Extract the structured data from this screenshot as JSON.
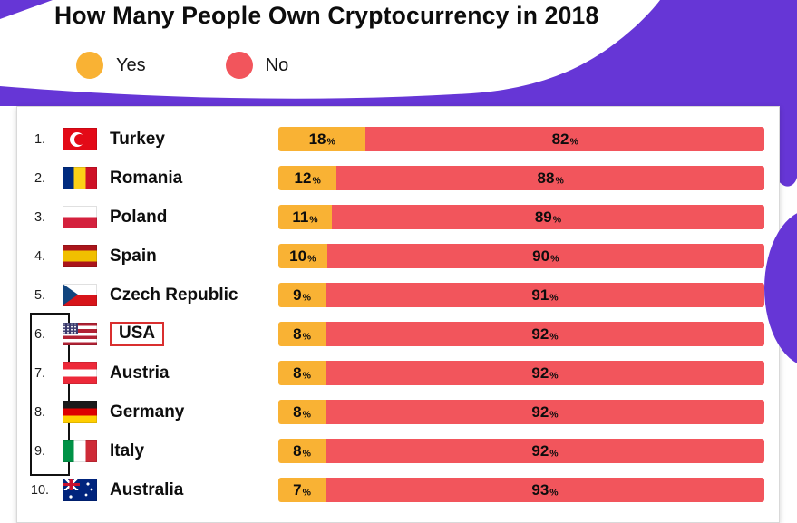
{
  "title": "How Many People Own Cryptocurrency in 2018",
  "legend": {
    "yes_label": "Yes",
    "no_label": "No"
  },
  "units": {
    "percent": "%"
  },
  "colors": {
    "yes": "#F9B234",
    "no": "#F2555C",
    "purple": "#6636D6"
  },
  "chart_data": {
    "type": "bar",
    "stacked": true,
    "orientation": "horizontal",
    "title": "How Many People Own Cryptocurrency in 2018",
    "categories": [
      "Turkey",
      "Romania",
      "Poland",
      "Spain",
      "Czech Republic",
      "USA",
      "Austria",
      "Germany",
      "Italy",
      "Australia"
    ],
    "series": [
      {
        "name": "Yes",
        "color": "#F9B234",
        "values": [
          18,
          12,
          11,
          10,
          9,
          8,
          8,
          8,
          8,
          7
        ]
      },
      {
        "name": "No",
        "color": "#F2555C",
        "values": [
          82,
          88,
          89,
          90,
          91,
          92,
          92,
          92,
          92,
          93
        ]
      }
    ],
    "value_unit": "%",
    "xlim": [
      0,
      100
    ],
    "legend_position": "top-left",
    "annotations": [
      "USA label outlined in red",
      "ranks 6-9 outlined with black bracket"
    ]
  },
  "rows": [
    {
      "rank": "1.",
      "country": "Turkey",
      "flag": "tr",
      "flag_name": "turkey-flag-icon",
      "yes": "18",
      "no": "82",
      "yes_pct": 18,
      "highlight": false
    },
    {
      "rank": "2.",
      "country": "Romania",
      "flag": "ro",
      "flag_name": "romania-flag-icon",
      "yes": "12",
      "no": "88",
      "yes_pct": 12,
      "highlight": false
    },
    {
      "rank": "3.",
      "country": "Poland",
      "flag": "pl",
      "flag_name": "poland-flag-icon",
      "yes": "11",
      "no": "89",
      "yes_pct": 11,
      "highlight": false
    },
    {
      "rank": "4.",
      "country": "Spain",
      "flag": "es",
      "flag_name": "spain-flag-icon",
      "yes": "10",
      "no": "90",
      "yes_pct": 10,
      "highlight": false
    },
    {
      "rank": "5.",
      "country": "Czech Republic",
      "flag": "cz",
      "flag_name": "czech-republic-flag-icon",
      "yes": "9",
      "no": "91",
      "yes_pct": 9,
      "highlight": false
    },
    {
      "rank": "6.",
      "country": "USA",
      "flag": "us",
      "flag_name": "usa-flag-icon",
      "yes": "8",
      "no": "92",
      "yes_pct": 8,
      "highlight": true
    },
    {
      "rank": "7.",
      "country": "Austria",
      "flag": "at",
      "flag_name": "austria-flag-icon",
      "yes": "8",
      "no": "92",
      "yes_pct": 8,
      "highlight": false
    },
    {
      "rank": "8.",
      "country": "Germany",
      "flag": "de",
      "flag_name": "germany-flag-icon",
      "yes": "8",
      "no": "92",
      "yes_pct": 8,
      "highlight": false
    },
    {
      "rank": "9.",
      "country": "Italy",
      "flag": "it",
      "flag_name": "italy-flag-icon",
      "yes": "8",
      "no": "92",
      "yes_pct": 8,
      "highlight": false
    },
    {
      "rank": "10.",
      "country": "Australia",
      "flag": "au",
      "flag_name": "australia-flag-icon",
      "yes": "7",
      "no": "93",
      "yes_pct": 7,
      "highlight": false
    }
  ]
}
